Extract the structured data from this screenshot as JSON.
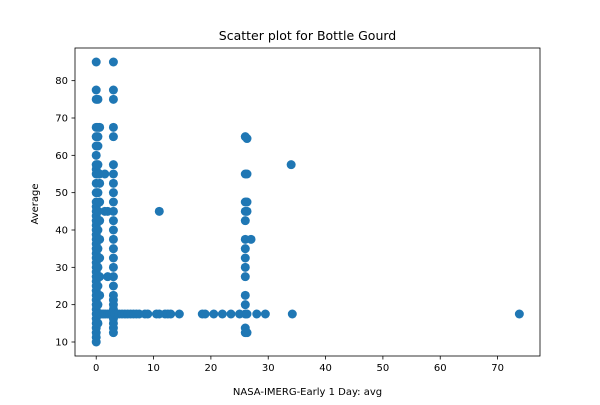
{
  "chart_data": {
    "type": "scatter",
    "title": "Scatter plot for Bottle Gourd",
    "xlabel": "NASA-IMERG-Early 1 Day: avg",
    "ylabel": "Average",
    "xlim": [
      -3.7,
      77.4
    ],
    "ylim": [
      6.25,
      88.75
    ],
    "xticks": [
      0,
      10,
      20,
      30,
      40,
      50,
      60,
      70
    ],
    "yticks": [
      10,
      20,
      30,
      40,
      50,
      60,
      70,
      80
    ],
    "grid": false,
    "marker_color": "#1f77b4",
    "points": [
      [
        0,
        10
      ],
      [
        0,
        11.25
      ],
      [
        0,
        12.5
      ],
      [
        0,
        13.75
      ],
      [
        0,
        15
      ],
      [
        0,
        16.25
      ],
      [
        0,
        17.5
      ],
      [
        0,
        18.75
      ],
      [
        0,
        20
      ],
      [
        0,
        21.25
      ],
      [
        0,
        22.5
      ],
      [
        0,
        23.75
      ],
      [
        0,
        25
      ],
      [
        0,
        26.25
      ],
      [
        0,
        27.5
      ],
      [
        0,
        28.75
      ],
      [
        0,
        30
      ],
      [
        0,
        31.25
      ],
      [
        0,
        32.5
      ],
      [
        0,
        33.75
      ],
      [
        0,
        35
      ],
      [
        0,
        36.25
      ],
      [
        0,
        37.5
      ],
      [
        0,
        38.75
      ],
      [
        0,
        40
      ],
      [
        0,
        41.25
      ],
      [
        0,
        42.5
      ],
      [
        0,
        43.75
      ],
      [
        0,
        45
      ],
      [
        0,
        46.25
      ],
      [
        0,
        47.5
      ],
      [
        0,
        50
      ],
      [
        0,
        52.5
      ],
      [
        0,
        55
      ],
      [
        0,
        56.25
      ],
      [
        0,
        57.5
      ],
      [
        0,
        60
      ],
      [
        0,
        62.5
      ],
      [
        0,
        65
      ],
      [
        0,
        67.5
      ],
      [
        0,
        75
      ],
      [
        0,
        77.5
      ],
      [
        0,
        85
      ],
      [
        0.3,
        15
      ],
      [
        0.3,
        17.5
      ],
      [
        0.3,
        20
      ],
      [
        0.3,
        25
      ],
      [
        0.3,
        30
      ],
      [
        0.3,
        35
      ],
      [
        0.3,
        40
      ],
      [
        0.3,
        45
      ],
      [
        0.3,
        50
      ],
      [
        0.3,
        55
      ],
      [
        0.3,
        57.5
      ],
      [
        0.3,
        62.5
      ],
      [
        0.3,
        65
      ],
      [
        0.3,
        67.5
      ],
      [
        0.3,
        75
      ],
      [
        0.6,
        17.5
      ],
      [
        0.6,
        22.5
      ],
      [
        0.6,
        27.5
      ],
      [
        0.6,
        32.5
      ],
      [
        0.6,
        37.5
      ],
      [
        0.6,
        42.5
      ],
      [
        0.6,
        47.5
      ],
      [
        0.6,
        52.5
      ],
      [
        0.6,
        55
      ],
      [
        0.6,
        67.5
      ],
      [
        1,
        17.5
      ],
      [
        1.3,
        17.5
      ],
      [
        1.6,
        17.5
      ],
      [
        2,
        17.5
      ],
      [
        2.4,
        17.5
      ],
      [
        2.8,
        17.5
      ],
      [
        1.5,
        55
      ],
      [
        1.5,
        45
      ],
      [
        2,
        27.5
      ],
      [
        2,
        45
      ],
      [
        3,
        12.5
      ],
      [
        3,
        13.75
      ],
      [
        3,
        15
      ],
      [
        3,
        16.25
      ],
      [
        3,
        17.5
      ],
      [
        3,
        18.75
      ],
      [
        3,
        20
      ],
      [
        3,
        21.25
      ],
      [
        3,
        22.5
      ],
      [
        3,
        25
      ],
      [
        3,
        27.5
      ],
      [
        3,
        30
      ],
      [
        3,
        32.5
      ],
      [
        3,
        35
      ],
      [
        3,
        37.5
      ],
      [
        3,
        40
      ],
      [
        3,
        42.5
      ],
      [
        3,
        45
      ],
      [
        3,
        47.5
      ],
      [
        3,
        50
      ],
      [
        3,
        52.5
      ],
      [
        3,
        55
      ],
      [
        3,
        57.5
      ],
      [
        3,
        65
      ],
      [
        3,
        67.5
      ],
      [
        3,
        75
      ],
      [
        3,
        77.5
      ],
      [
        3,
        85
      ],
      [
        3.3,
        17.5
      ],
      [
        3.6,
        17.5
      ],
      [
        4,
        17.5
      ],
      [
        4.5,
        17.5
      ],
      [
        5,
        17.5
      ],
      [
        5.5,
        17.5
      ],
      [
        6,
        17.5
      ],
      [
        6.5,
        17.5
      ],
      [
        7,
        17.5
      ],
      [
        7.5,
        17.5
      ],
      [
        8.5,
        17.5
      ],
      [
        9,
        17.5
      ],
      [
        10.5,
        17.5
      ],
      [
        11,
        17.5
      ],
      [
        12,
        17.5
      ],
      [
        12.5,
        17.5
      ],
      [
        13,
        17.5
      ],
      [
        14.5,
        17.5
      ],
      [
        11,
        45
      ],
      [
        18.5,
        17.5
      ],
      [
        19,
        17.5
      ],
      [
        20.5,
        17.5
      ],
      [
        22,
        17.5
      ],
      [
        23.5,
        17.5
      ],
      [
        25,
        17.5
      ],
      [
        26,
        12.5
      ],
      [
        26,
        13.75
      ],
      [
        26,
        17.5
      ],
      [
        26,
        20
      ],
      [
        26,
        22.5
      ],
      [
        26,
        27.5
      ],
      [
        26,
        30
      ],
      [
        26,
        32.5
      ],
      [
        26,
        35
      ],
      [
        26,
        37.5
      ],
      [
        26,
        42.5
      ],
      [
        26,
        45
      ],
      [
        26,
        47.5
      ],
      [
        26,
        55
      ],
      [
        26,
        65
      ],
      [
        26.3,
        12.5
      ],
      [
        26.3,
        17.5
      ],
      [
        26.3,
        45
      ],
      [
        26.3,
        47.5
      ],
      [
        26.3,
        55
      ],
      [
        26.3,
        64.5
      ],
      [
        27,
        37.5
      ],
      [
        28,
        17.5
      ],
      [
        29.5,
        17.5
      ],
      [
        34,
        57.5
      ],
      [
        34.2,
        17.5
      ],
      [
        73.8,
        17.5
      ]
    ]
  }
}
